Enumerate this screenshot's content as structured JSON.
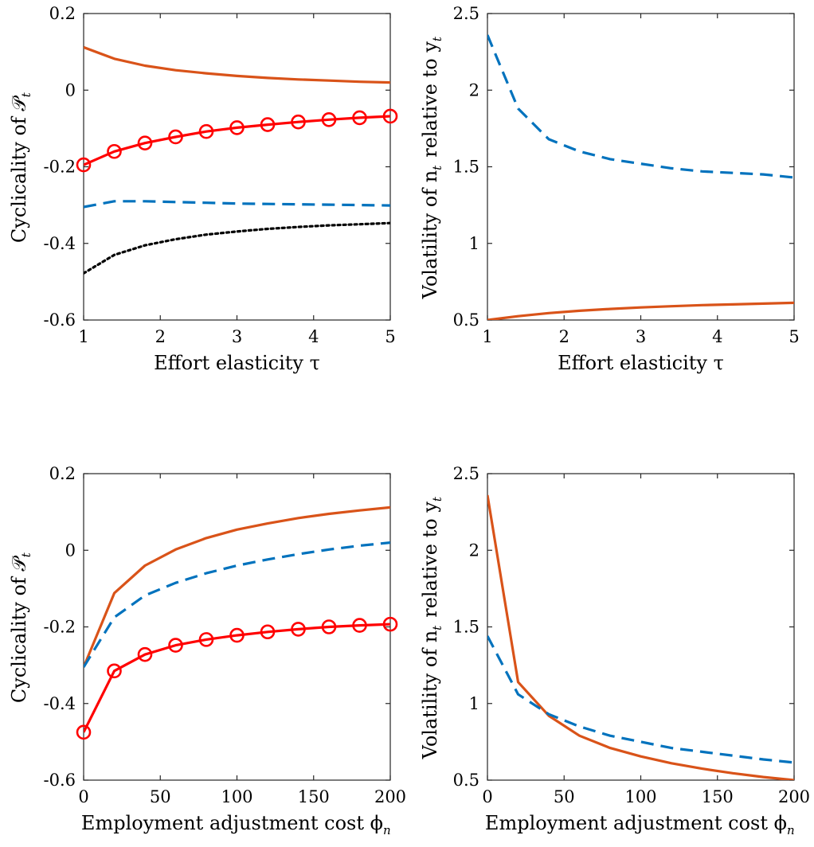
{
  "chart_data": [
    {
      "type": "line",
      "xlabel": "Effort elasticity τ",
      "ylabel": "Cyclicality of 𝒫",
      "ylabel_sub": "t",
      "xlim": [
        1,
        5
      ],
      "ylim": [
        -0.6,
        0.2
      ],
      "xticks": [
        1,
        2,
        3,
        4,
        5
      ],
      "xtick_labels": [
        "1",
        "2",
        "3",
        "4",
        "5"
      ],
      "yticks": [
        -0.6,
        -0.4,
        -0.2,
        0,
        0.2
      ],
      "ytick_labels": [
        "-0.6",
        "-0.4",
        "-0.2",
        "0",
        "0.2"
      ],
      "grid": false,
      "series": [
        {
          "color": "#D95319",
          "dash": "solid",
          "marker": "none",
          "x": [
            1,
            1.4,
            1.8,
            2.2,
            2.6,
            3.0,
            3.4,
            3.8,
            4.2,
            4.6,
            5.0
          ],
          "y": [
            0.112,
            0.082,
            0.064,
            0.052,
            0.044,
            0.037,
            0.032,
            0.028,
            0.025,
            0.022,
            0.02
          ]
        },
        {
          "color": "#FF0000",
          "dash": "solid",
          "marker": "circle",
          "x": [
            1,
            1.4,
            1.8,
            2.2,
            2.6,
            3.0,
            3.4,
            3.8,
            4.2,
            4.6,
            5.0
          ],
          "y": [
            -0.195,
            -0.16,
            -0.138,
            -0.122,
            -0.108,
            -0.098,
            -0.09,
            -0.083,
            -0.077,
            -0.072,
            -0.068
          ]
        },
        {
          "color": "#0072BD",
          "dash": "dashed",
          "marker": "none",
          "x": [
            1,
            1.4,
            1.8,
            2.2,
            2.6,
            3.0,
            3.4,
            3.8,
            4.2,
            4.6,
            5.0
          ],
          "y": [
            -0.305,
            -0.29,
            -0.29,
            -0.292,
            -0.294,
            -0.296,
            -0.297,
            -0.298,
            -0.299,
            -0.3,
            -0.301
          ]
        },
        {
          "color": "#000000",
          "dash": "dotted",
          "marker": "none",
          "x": [
            1,
            1.4,
            1.8,
            2.2,
            2.6,
            3.0,
            3.4,
            3.8,
            4.2,
            4.6,
            5.0
          ],
          "y": [
            -0.478,
            -0.43,
            -0.405,
            -0.389,
            -0.377,
            -0.369,
            -0.362,
            -0.357,
            -0.353,
            -0.35,
            -0.347
          ]
        }
      ]
    },
    {
      "type": "line",
      "xlabel": "Effort elasticity τ",
      "ylabel": "Volatility of n",
      "ylabel_sub": "t",
      "ylabel_tail": " relative to y",
      "ylabel_tail_sub": "t",
      "xlim": [
        1,
        5
      ],
      "ylim": [
        0.5,
        2.5
      ],
      "xticks": [
        1,
        2,
        3,
        4,
        5
      ],
      "xtick_labels": [
        "1",
        "2",
        "3",
        "4",
        "5"
      ],
      "yticks": [
        0.5,
        1,
        1.5,
        2,
        2.5
      ],
      "ytick_labels": [
        "0.5",
        "1",
        "1.5",
        "2",
        "2.5"
      ],
      "grid": false,
      "series": [
        {
          "color": "#0072BD",
          "dash": "dashed",
          "marker": "none",
          "x": [
            1,
            1.4,
            1.8,
            2.2,
            2.6,
            3.0,
            3.4,
            3.8,
            4.2,
            4.6,
            5.0
          ],
          "y": [
            2.36,
            1.88,
            1.68,
            1.6,
            1.55,
            1.52,
            1.49,
            1.47,
            1.46,
            1.45,
            1.43
          ]
        },
        {
          "color": "#D95319",
          "dash": "solid",
          "marker": "none",
          "x": [
            1,
            1.4,
            1.8,
            2.2,
            2.6,
            3.0,
            3.4,
            3.8,
            4.2,
            4.6,
            5.0
          ],
          "y": [
            0.5,
            0.525,
            0.545,
            0.56,
            0.572,
            0.582,
            0.59,
            0.597,
            0.602,
            0.607,
            0.612
          ]
        }
      ]
    },
    {
      "type": "line",
      "xlabel": "Employment adjustment cost ϕ",
      "xlabel_sub": "n",
      "ylabel": "Cyclicality of 𝒫",
      "ylabel_sub": "t",
      "xlim": [
        0,
        200
      ],
      "ylim": [
        -0.6,
        0.2
      ],
      "xticks": [
        0,
        50,
        100,
        150,
        200
      ],
      "xtick_labels": [
        "0",
        "50",
        "100",
        "150",
        "200"
      ],
      "yticks": [
        -0.6,
        -0.4,
        -0.2,
        0,
        0.2
      ],
      "ytick_labels": [
        "-0.6",
        "-0.4",
        "-0.2",
        "0",
        "0.2"
      ],
      "grid": false,
      "series": [
        {
          "color": "#D95319",
          "dash": "solid",
          "marker": "none",
          "x": [
            0,
            20,
            40,
            60,
            80,
            100,
            120,
            140,
            160,
            180,
            200
          ],
          "y": [
            -0.305,
            -0.112,
            -0.04,
            0.002,
            0.032,
            0.054,
            0.07,
            0.084,
            0.095,
            0.104,
            0.112
          ]
        },
        {
          "color": "#0072BD",
          "dash": "dashed",
          "marker": "none",
          "x": [
            0,
            20,
            40,
            60,
            80,
            100,
            120,
            140,
            160,
            180,
            200
          ],
          "y": [
            -0.305,
            -0.175,
            -0.118,
            -0.085,
            -0.06,
            -0.04,
            -0.024,
            -0.01,
            0.002,
            0.012,
            0.02
          ]
        },
        {
          "color": "#FF0000",
          "dash": "solid",
          "marker": "circle",
          "x": [
            0,
            20,
            40,
            60,
            80,
            100,
            120,
            140,
            160,
            180,
            200
          ],
          "y": [
            -0.475,
            -0.315,
            -0.272,
            -0.248,
            -0.233,
            -0.222,
            -0.213,
            -0.206,
            -0.2,
            -0.196,
            -0.193
          ]
        }
      ]
    },
    {
      "type": "line",
      "xlabel": "Employment adjustment cost ϕ",
      "xlabel_sub": "n",
      "ylabel": "Volatility of n",
      "ylabel_sub": "t",
      "ylabel_tail": " relative to y",
      "ylabel_tail_sub": "t",
      "xlim": [
        0,
        200
      ],
      "ylim": [
        0.5,
        2.5
      ],
      "xticks": [
        0,
        50,
        100,
        150,
        200
      ],
      "xtick_labels": [
        "0",
        "50",
        "100",
        "150",
        "200"
      ],
      "yticks": [
        0.5,
        1,
        1.5,
        2,
        2.5
      ],
      "ytick_labels": [
        "0.5",
        "1",
        "1.5",
        "2",
        "2.5"
      ],
      "grid": false,
      "series": [
        {
          "color": "#D95319",
          "dash": "solid",
          "marker": "none",
          "x": [
            0,
            20,
            40,
            60,
            80,
            100,
            120,
            140,
            160,
            180,
            200
          ],
          "y": [
            2.36,
            1.14,
            0.92,
            0.79,
            0.71,
            0.655,
            0.61,
            0.575,
            0.545,
            0.52,
            0.5
          ]
        },
        {
          "color": "#0072BD",
          "dash": "dashed",
          "marker": "none",
          "x": [
            0,
            20,
            40,
            60,
            80,
            100,
            120,
            140,
            160,
            180,
            200
          ],
          "y": [
            1.44,
            1.06,
            0.93,
            0.85,
            0.79,
            0.75,
            0.71,
            0.685,
            0.66,
            0.635,
            0.615
          ]
        }
      ]
    }
  ]
}
